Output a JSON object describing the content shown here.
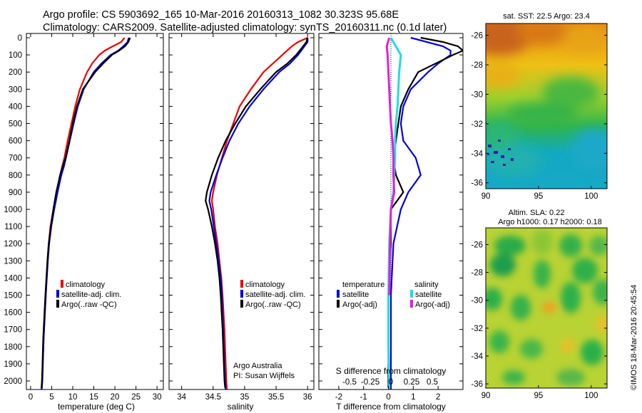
{
  "header": {
    "line1": "Argo profile: CS 5903692_165 10-Mar-2016 20160313_1082 30.323S 95.68E",
    "line2": "Climatology: CARS2009. Satellite-adjusted climatology: synTS_20160311.nc (0.1d later)"
  },
  "colors": {
    "climatology": "#ee0000",
    "satellite": "#0000dd",
    "argo": "#000000",
    "sat_salinity": "#22dddd",
    "argo_salinity": "#dd22dd"
  },
  "depth_ticks": [
    "0",
    "100",
    "200",
    "300",
    "400",
    "500",
    "600",
    "700",
    "800",
    "900",
    "1000",
    "1100",
    "1200",
    "1300",
    "1400",
    "1500",
    "1600",
    "1700",
    "1800",
    "1900",
    "2000"
  ],
  "chart_data": [
    {
      "type": "line",
      "xlabel": "temperature (deg C)",
      "x_ticks": [
        "0",
        "5",
        "10",
        "15",
        "20",
        "25",
        "30"
      ],
      "xlim": [
        -1,
        31.5
      ],
      "ylim": [
        2100,
        0
      ],
      "legend": [
        "climatology",
        "satellite-adj. clim.",
        "Argo(..raw -QC)"
      ],
      "series": [
        {
          "name": "climatology",
          "depth": [
            0,
            25,
            50,
            75,
            100,
            150,
            200,
            300,
            400,
            500,
            600,
            700,
            750,
            800,
            900,
            1000,
            1100,
            1200,
            1300,
            1500,
            1750,
            2000,
            2060
          ],
          "values": [
            22.3,
            21.5,
            19.5,
            17.6,
            16.3,
            14.6,
            13.4,
            11.7,
            10.6,
            9.7,
            8.8,
            8.0,
            7.5,
            7.0,
            6.2,
            5.4,
            4.7,
            4.3,
            4.0,
            3.6,
            3.1,
            2.7,
            2.5
          ]
        },
        {
          "name": "satellite-adj. clim.",
          "depth": [
            0,
            25,
            50,
            75,
            100,
            150,
            200,
            300,
            400,
            500,
            600,
            700,
            750,
            800,
            900,
            1000,
            1100,
            1200,
            1300,
            1500,
            1750,
            2000,
            2060
          ],
          "values": [
            23.3,
            23.0,
            22.0,
            20.8,
            19.0,
            16.8,
            15.0,
            12.6,
            11.2,
            10.2,
            9.3,
            8.4,
            7.9,
            7.3,
            6.4,
            5.6,
            4.9,
            4.4,
            4.1,
            3.6,
            3.1,
            2.8,
            2.6
          ]
        },
        {
          "name": "Argo(..raw -QC)",
          "depth": [
            0,
            25,
            50,
            75,
            100,
            150,
            200,
            300,
            400,
            500,
            600,
            700,
            750,
            800,
            900,
            1000,
            1100,
            1200,
            1300,
            1500,
            1750,
            2000,
            2040
          ],
          "values": [
            23.6,
            23.2,
            22.4,
            21.0,
            19.3,
            17.2,
            15.3,
            12.4,
            11.0,
            10.0,
            9.2,
            8.3,
            7.6,
            7.0,
            6.1,
            5.4,
            4.8,
            4.3,
            4.0,
            3.5,
            3.0,
            2.7,
            2.6
          ]
        }
      ]
    },
    {
      "type": "line",
      "xlabel": "salinity",
      "x_ticks": [
        "34",
        "34.5",
        "35",
        "35.5",
        "36"
      ],
      "xlim": [
        33.8,
        36.1
      ],
      "ylim": [
        2100,
        0
      ],
      "legend": [
        "climatology",
        "satellite-adj. clim.",
        "Argo(..raw -QC)"
      ],
      "annotation": [
        "Argo Australia",
        "PI: Susan Wijffels"
      ],
      "series": [
        {
          "name": "climatology",
          "depth": [
            0,
            25,
            50,
            100,
            150,
            200,
            300,
            400,
            500,
            600,
            700,
            800,
            900,
            950,
            1000,
            1100,
            1200,
            1300,
            1400,
            1500,
            1700,
            1900,
            2000,
            2060
          ],
          "values": [
            36.0,
            35.85,
            35.75,
            35.6,
            35.45,
            35.3,
            35.1,
            34.92,
            34.82,
            34.72,
            34.64,
            34.56,
            34.5,
            34.48,
            34.5,
            34.53,
            34.57,
            34.6,
            34.63,
            34.65,
            34.68,
            34.7,
            34.71,
            34.72
          ]
        },
        {
          "name": "satellite-adj. clim.",
          "depth": [
            0,
            25,
            50,
            100,
            150,
            200,
            300,
            400,
            500,
            600,
            700,
            800,
            900,
            950,
            1000,
            1100,
            1200,
            1300,
            1400,
            1500,
            1700,
            1900,
            2000,
            2060
          ],
          "values": [
            36.0,
            36.0,
            35.95,
            35.85,
            35.72,
            35.55,
            35.3,
            35.08,
            34.9,
            34.76,
            34.65,
            34.55,
            34.46,
            34.44,
            34.47,
            34.51,
            34.55,
            34.59,
            34.62,
            34.64,
            34.66,
            34.68,
            34.69,
            34.7
          ]
        },
        {
          "name": "Argo(..raw -QC)",
          "depth": [
            0,
            25,
            50,
            100,
            150,
            200,
            300,
            400,
            500,
            600,
            700,
            800,
            900,
            950,
            1000,
            1100,
            1200,
            1300,
            1400,
            1500,
            1700,
            1900,
            2000,
            2040
          ],
          "values": [
            36.0,
            35.98,
            35.93,
            35.82,
            35.68,
            35.5,
            35.25,
            35.02,
            34.85,
            34.7,
            34.58,
            34.48,
            34.4,
            34.38,
            34.42,
            34.48,
            34.53,
            34.57,
            34.6,
            34.62,
            34.65,
            34.67,
            34.68,
            34.69
          ]
        }
      ]
    },
    {
      "type": "line",
      "xlabel": "T difference from climatology",
      "top_label": "S difference from climatology",
      "x_ticks": [
        "-2",
        "-1",
        "0",
        "1",
        "2"
      ],
      "s_ticks": [
        "-0.5",
        "-0.25",
        "0",
        "0.25",
        "0.5"
      ],
      "xlim": [
        -2.8,
        3.0
      ],
      "ylim": [
        2100,
        0
      ],
      "legend_temperature": [
        "temperature",
        "satellite",
        "Argo(-adj)"
      ],
      "legend_salinity": [
        "salinity",
        "satellite",
        "Argo(-adj)"
      ],
      "series": [
        {
          "name": "satellite",
          "depth": [
            0,
            50,
            75,
            100,
            150,
            200,
            300,
            400,
            500,
            600,
            700,
            800,
            900,
            1000,
            1200,
            1500,
            1800,
            2000,
            2060
          ],
          "values": [
            0.9,
            2.2,
            2.5,
            2.5,
            2.0,
            1.6,
            0.9,
            0.6,
            0.5,
            0.6,
            1.1,
            1.3,
            0.8,
            0.5,
            0.2,
            0.1,
            0.1,
            0.1,
            0.1
          ]
        },
        {
          "name": "Argo(-adj)",
          "depth": [
            0,
            25,
            50,
            75,
            100,
            150,
            200,
            300,
            400,
            500,
            600,
            700,
            800,
            900,
            1000,
            1200,
            1500,
            1800,
            2000,
            2040
          ],
          "values": [
            1.3,
            2.2,
            2.8,
            3.0,
            2.6,
            1.9,
            1.2,
            0.8,
            0.5,
            0.4,
            0.3,
            0.2,
            0.3,
            0.6,
            0.1,
            0.1,
            0.0,
            0.0,
            0.0,
            0.0
          ]
        },
        {
          "name": "satellite",
          "depth": [
            0,
            100,
            200,
            300,
            400,
            500,
            600,
            700,
            800,
            900,
            1000,
            1200,
            1500,
            1800,
            2000,
            2060
          ],
          "values": [
            0.0,
            0.12,
            0.1,
            0.09,
            0.08,
            0.06,
            0.05,
            0.05,
            0.04,
            0.03,
            0.0,
            -0.02,
            -0.03,
            -0.03,
            -0.02,
            -0.02
          ]
        },
        {
          "name": "Argo(-adj)",
          "depth": [
            0,
            50,
            100,
            200,
            300,
            400,
            500,
            600,
            700,
            800,
            900,
            1000,
            1200,
            1500
          ],
          "values": [
            -0.02,
            -0.05,
            -0.04,
            -0.03,
            -0.02,
            -0.01,
            0.0,
            0.02,
            0.03,
            0.03,
            0.04,
            0.0,
            -0.01,
            -0.02
          ]
        }
      ]
    },
    {
      "type": "heatmap",
      "title": "sat. SST: 22.5 Argo: 23.4",
      "x_ticks": [
        "90",
        "95",
        "100"
      ],
      "y_ticks": [
        "-26",
        "-28",
        "-30",
        "-32",
        "-34",
        "-36"
      ]
    },
    {
      "type": "heatmap",
      "title_line1": "Altim. SLA: 0.22",
      "title_line2": "Argo h1000: 0.17 h2000: 0.18",
      "x_ticks": [
        "90",
        "95",
        "100"
      ],
      "y_ticks": [
        "-26",
        "-28",
        "-30",
        "-32",
        "-34",
        "-36"
      ]
    }
  ],
  "footer": {
    "stamp": "©IMOS 18-Mar-2016 20:45:54"
  }
}
